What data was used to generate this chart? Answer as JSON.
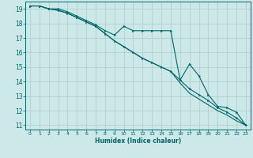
{
  "xlabel": "Humidex (Indice chaleur)",
  "background_color": "#cce8e8",
  "grid_color": "#aacccc",
  "line_color": "#006666",
  "xlim": [
    -0.5,
    23.5
  ],
  "ylim": [
    10.7,
    19.5
  ],
  "yticks": [
    11,
    12,
    13,
    14,
    15,
    16,
    17,
    18,
    19
  ],
  "xticks": [
    0,
    1,
    2,
    3,
    4,
    5,
    6,
    7,
    8,
    9,
    10,
    11,
    12,
    13,
    14,
    15,
    16,
    17,
    18,
    19,
    20,
    21,
    22,
    23
  ],
  "series1_x": [
    0,
    1,
    2,
    3,
    4,
    5,
    6,
    7,
    8,
    9,
    10,
    11,
    12,
    13,
    14,
    15,
    16,
    17,
    18,
    19,
    20,
    21,
    22,
    23
  ],
  "series1_y": [
    19.2,
    19.2,
    19.0,
    19.0,
    18.8,
    18.5,
    18.2,
    17.9,
    17.5,
    17.2,
    17.8,
    17.5,
    17.5,
    17.5,
    17.5,
    17.5,
    14.1,
    15.2,
    14.4,
    13.1,
    12.3,
    12.2,
    11.9,
    11.0
  ],
  "series2_x": [
    0,
    1,
    2,
    3,
    4,
    5,
    6,
    7,
    8,
    9,
    10,
    11,
    12,
    13,
    14,
    15,
    16,
    17,
    18,
    19,
    20,
    21,
    22,
    23
  ],
  "series2_y": [
    19.2,
    19.2,
    19.0,
    18.9,
    18.7,
    18.4,
    18.1,
    17.8,
    17.3,
    16.8,
    16.4,
    16.0,
    15.6,
    15.3,
    15.0,
    14.7,
    14.1,
    13.5,
    13.1,
    12.7,
    12.2,
    11.9,
    11.5,
    11.0
  ],
  "series3_x": [
    0,
    1,
    2,
    3,
    4,
    5,
    6,
    7,
    8,
    9,
    10,
    11,
    12,
    13,
    14,
    15,
    16,
    17,
    18,
    19,
    20,
    21,
    22,
    23
  ],
  "series3_y": [
    19.2,
    19.2,
    19.0,
    18.9,
    18.7,
    18.4,
    18.1,
    17.8,
    17.3,
    16.8,
    16.4,
    16.0,
    15.6,
    15.3,
    15.0,
    14.7,
    13.9,
    13.2,
    12.8,
    12.4,
    12.0,
    11.7,
    11.3,
    11.0
  ]
}
